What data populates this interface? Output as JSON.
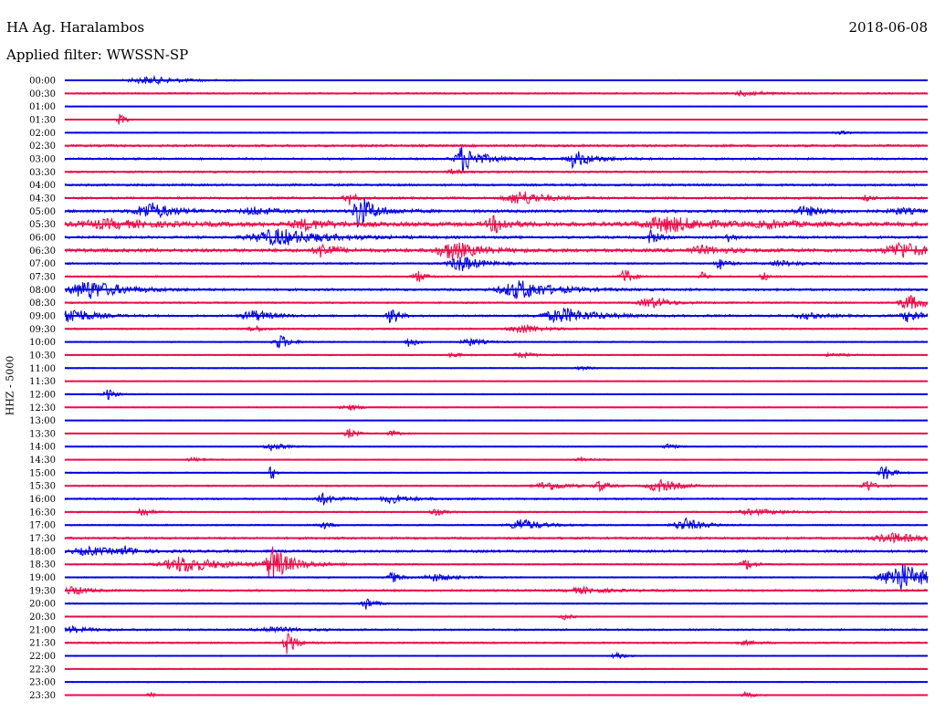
{
  "header": {
    "station": "HA Ag. Haralambos",
    "date": "2018-06-08",
    "filter": "Applied filter: WWSSN-SP",
    "channel": "HHZ - 5000"
  },
  "colors": {
    "blue": "#0000e6",
    "red": "#ee0a48"
  },
  "chart_data": {
    "type": "line",
    "title": "HA Ag. Haralambos",
    "subtitle": "Applied filter: WWSSN-SP",
    "ylabel": "HHZ - 5000",
    "rows": [
      {
        "label": "00:00",
        "color": "blue",
        "noise": 0.6,
        "events": [
          [
            0.1,
            4,
            0.06,
            0.7
          ]
        ]
      },
      {
        "label": "00:30",
        "color": "red",
        "noise": 0.9,
        "events": [
          [
            0.79,
            3,
            0.03,
            0.7
          ]
        ]
      },
      {
        "label": "01:00",
        "color": "blue",
        "noise": 0.4,
        "events": []
      },
      {
        "label": "01:30",
        "color": "red",
        "noise": 0.5,
        "events": [
          [
            0.065,
            9,
            0.005,
            0.4
          ]
        ]
      },
      {
        "label": "02:00",
        "color": "blue",
        "noise": 0.6,
        "events": [
          [
            0.9,
            1.5,
            0.02,
            0.5
          ]
        ]
      },
      {
        "label": "02:30",
        "color": "red",
        "noise": 1.2,
        "events": []
      },
      {
        "label": "03:00",
        "color": "blue",
        "noise": 1.1,
        "events": [
          [
            0.46,
            10,
            0.01,
            0.6
          ],
          [
            0.47,
            7,
            0.04,
            0.6
          ],
          [
            0.59,
            7,
            0.01,
            0.5
          ],
          [
            0.6,
            4,
            0.04,
            0.6
          ]
        ]
      },
      {
        "label": "03:30",
        "color": "red",
        "noise": 1.0,
        "events": [
          [
            0.45,
            3,
            0.01,
            0.5
          ]
        ]
      },
      {
        "label": "04:00",
        "color": "blue",
        "noise": 1.2,
        "events": []
      },
      {
        "label": "04:30",
        "color": "red",
        "noise": 1.2,
        "events": [
          [
            0.33,
            7,
            0.01,
            0.7
          ],
          [
            0.53,
            8,
            0.04,
            0.7
          ],
          [
            0.93,
            4,
            0.005,
            0.5
          ]
        ]
      },
      {
        "label": "05:00",
        "color": "blue",
        "noise": 1.5,
        "events": [
          [
            0.1,
            9,
            0.04,
            0.7
          ],
          [
            0.34,
            18,
            0.006,
            0.6
          ],
          [
            0.35,
            9,
            0.03,
            0.6
          ],
          [
            0.22,
            4,
            0.03,
            0.6
          ],
          [
            0.86,
            5,
            0.03,
            0.6
          ],
          [
            0.97,
            3,
            0.03,
            0.5
          ]
        ]
      },
      {
        "label": "05:30",
        "color": "red",
        "noise": 2.2,
        "events": [
          [
            0.05,
            4,
            0.08,
            0.5
          ],
          [
            0.5,
            9,
            0.02,
            0.6
          ],
          [
            0.7,
            8,
            0.07,
            0.7
          ],
          [
            0.28,
            5,
            0.04,
            0.5
          ],
          [
            0.82,
            3,
            0.04,
            0.5
          ]
        ]
      },
      {
        "label": "06:00",
        "color": "blue",
        "noise": 1.3,
        "events": [
          [
            0.25,
            9,
            0.08,
            0.7
          ],
          [
            0.68,
            8,
            0.01,
            0.6
          ],
          [
            0.77,
            6,
            0.005,
            0.5
          ]
        ]
      },
      {
        "label": "06:30",
        "color": "red",
        "noise": 1.8,
        "events": [
          [
            0.3,
            8,
            0.02,
            0.6
          ],
          [
            0.45,
            10,
            0.04,
            0.6
          ],
          [
            0.97,
            9,
            0.04,
            0.6
          ],
          [
            0.74,
            4,
            0.04,
            0.6
          ]
        ]
      },
      {
        "label": "07:00",
        "color": "blue",
        "noise": 1.0,
        "events": [
          [
            0.46,
            9,
            0.03,
            0.6
          ],
          [
            0.76,
            6,
            0.01,
            0.5
          ],
          [
            0.83,
            3,
            0.03,
            0.5
          ]
        ]
      },
      {
        "label": "07:30",
        "color": "red",
        "noise": 0.9,
        "events": [
          [
            0.41,
            6,
            0.01,
            0.5
          ],
          [
            0.65,
            9,
            0.01,
            0.6
          ],
          [
            0.74,
            5,
            0.005,
            0.5
          ],
          [
            0.81,
            5,
            0.005,
            0.5
          ]
        ]
      },
      {
        "label": "08:00",
        "color": "blue",
        "noise": 1.2,
        "events": [
          [
            0.03,
            10,
            0.06,
            0.7
          ],
          [
            0.53,
            10,
            0.06,
            0.7
          ]
        ]
      },
      {
        "label": "08:30",
        "color": "red",
        "noise": 0.9,
        "events": [
          [
            0.68,
            6,
            0.03,
            0.6
          ],
          [
            0.98,
            8,
            0.03,
            0.6
          ]
        ]
      },
      {
        "label": "09:00",
        "color": "blue",
        "noise": 1.1,
        "events": [
          [
            0.01,
            9,
            0.03,
            0.6
          ],
          [
            0.22,
            6,
            0.03,
            0.6
          ],
          [
            0.38,
            10,
            0.01,
            0.6
          ],
          [
            0.58,
            8,
            0.06,
            0.7
          ],
          [
            0.86,
            3,
            0.03,
            0.5
          ],
          [
            0.98,
            7,
            0.02,
            0.6
          ]
        ]
      },
      {
        "label": "09:30",
        "color": "red",
        "noise": 0.9,
        "events": [
          [
            0.22,
            4,
            0.01,
            0.5
          ],
          [
            0.53,
            5,
            0.03,
            0.5
          ]
        ]
      },
      {
        "label": "10:00",
        "color": "blue",
        "noise": 0.7,
        "events": [
          [
            0.25,
            8,
            0.015,
            0.6
          ],
          [
            0.4,
            6,
            0.01,
            0.5
          ],
          [
            0.47,
            4,
            0.02,
            0.5
          ]
        ]
      },
      {
        "label": "10:30",
        "color": "red",
        "noise": 0.7,
        "events": [
          [
            0.45,
            3,
            0.01,
            0.5
          ],
          [
            0.53,
            3,
            0.02,
            0.5
          ],
          [
            0.89,
            2,
            0.02,
            0.5
          ]
        ]
      },
      {
        "label": "11:00",
        "color": "blue",
        "noise": 0.6,
        "events": [
          [
            0.6,
            1.5,
            0.02,
            0.5
          ]
        ]
      },
      {
        "label": "11:30",
        "color": "red",
        "noise": 0.6,
        "events": []
      },
      {
        "label": "12:00",
        "color": "blue",
        "noise": 0.6,
        "events": [
          [
            0.05,
            6,
            0.01,
            0.5
          ]
        ]
      },
      {
        "label": "12:30",
        "color": "red",
        "noise": 0.6,
        "events": [
          [
            0.33,
            3,
            0.02,
            0.5
          ]
        ]
      },
      {
        "label": "13:00",
        "color": "blue",
        "noise": 0.5,
        "events": []
      },
      {
        "label": "13:30",
        "color": "red",
        "noise": 0.6,
        "events": [
          [
            0.33,
            5,
            0.01,
            0.5
          ],
          [
            0.38,
            3,
            0.01,
            0.5
          ]
        ]
      },
      {
        "label": "14:00",
        "color": "blue",
        "noise": 0.6,
        "events": [
          [
            0.24,
            4,
            0.02,
            0.5
          ],
          [
            0.7,
            3,
            0.01,
            0.5
          ]
        ]
      },
      {
        "label": "14:30",
        "color": "red",
        "noise": 0.6,
        "events": [
          [
            0.15,
            2,
            0.02,
            0.5
          ],
          [
            0.6,
            2,
            0.02,
            0.5
          ]
        ]
      },
      {
        "label": "15:00",
        "color": "blue",
        "noise": 0.7,
        "events": [
          [
            0.24,
            9,
            0.005,
            0.5
          ],
          [
            0.95,
            10,
            0.01,
            0.5
          ]
        ]
      },
      {
        "label": "15:30",
        "color": "red",
        "noise": 0.8,
        "events": [
          [
            0.56,
            5,
            0.03,
            0.5
          ],
          [
            0.62,
            6,
            0.01,
            0.5
          ],
          [
            0.69,
            7,
            0.03,
            0.6
          ],
          [
            0.93,
            7,
            0.01,
            0.5
          ]
        ]
      },
      {
        "label": "16:00",
        "color": "blue",
        "noise": 1.0,
        "events": [
          [
            0.3,
            6,
            0.02,
            0.5
          ],
          [
            0.38,
            4,
            0.03,
            0.5
          ]
        ]
      },
      {
        "label": "16:30",
        "color": "red",
        "noise": 0.8,
        "events": [
          [
            0.09,
            6,
            0.01,
            0.5
          ],
          [
            0.43,
            4,
            0.01,
            0.5
          ],
          [
            0.8,
            3,
            0.05,
            0.5
          ]
        ]
      },
      {
        "label": "17:00",
        "color": "blue",
        "noise": 0.8,
        "events": [
          [
            0.3,
            4,
            0.01,
            0.5
          ],
          [
            0.53,
            7,
            0.03,
            0.6
          ],
          [
            0.72,
            7,
            0.03,
            0.6
          ]
        ]
      },
      {
        "label": "17:30",
        "color": "red",
        "noise": 1.2,
        "events": [
          [
            0.96,
            5,
            0.05,
            0.5
          ]
        ]
      },
      {
        "label": "18:00",
        "color": "blue",
        "noise": 1.3,
        "events": [
          [
            0.03,
            4,
            0.05,
            0.5
          ],
          [
            0.07,
            4,
            0.01,
            0.5
          ]
        ]
      },
      {
        "label": "18:30",
        "color": "red",
        "noise": 0.9,
        "events": [
          [
            0.14,
            9,
            0.06,
            0.6
          ],
          [
            0.24,
            14,
            0.01,
            0.6
          ],
          [
            0.25,
            9,
            0.04,
            0.6
          ],
          [
            0.79,
            6,
            0.01,
            0.5
          ]
        ]
      },
      {
        "label": "19:00",
        "color": "blue",
        "noise": 0.8,
        "events": [
          [
            0.38,
            6,
            0.01,
            0.5
          ],
          [
            0.43,
            4,
            0.03,
            0.5
          ],
          [
            0.97,
            16,
            0.05,
            0.8
          ]
        ]
      },
      {
        "label": "19:30",
        "color": "red",
        "noise": 1.1,
        "events": [
          [
            0.01,
            5,
            0.02,
            0.5
          ],
          [
            0.6,
            3,
            0.04,
            0.5
          ]
        ]
      },
      {
        "label": "20:00",
        "color": "blue",
        "noise": 0.7,
        "events": [
          [
            0.35,
            7,
            0.01,
            0.5
          ]
        ]
      },
      {
        "label": "20:30",
        "color": "red",
        "noise": 0.7,
        "events": [
          [
            0.58,
            3,
            0.01,
            0.5
          ]
        ]
      },
      {
        "label": "21:00",
        "color": "blue",
        "noise": 1.0,
        "events": [
          [
            0.01,
            3,
            0.03,
            0.5
          ],
          [
            0.24,
            3,
            0.04,
            0.5
          ]
        ]
      },
      {
        "label": "21:30",
        "color": "red",
        "noise": 0.9,
        "events": [
          [
            0.26,
            16,
            0.01,
            0.7
          ],
          [
            0.79,
            2,
            0.02,
            0.5
          ]
        ]
      },
      {
        "label": "22:00",
        "color": "blue",
        "noise": 0.6,
        "events": [
          [
            0.64,
            4,
            0.01,
            0.5
          ]
        ]
      },
      {
        "label": "22:30",
        "color": "red",
        "noise": 0.6,
        "events": []
      },
      {
        "label": "23:00",
        "color": "blue",
        "noise": 0.6,
        "events": []
      },
      {
        "label": "23:30",
        "color": "red",
        "noise": 0.6,
        "events": [
          [
            0.1,
            2,
            0.01,
            0.5
          ],
          [
            0.79,
            3,
            0.01,
            0.5
          ]
        ]
      }
    ]
  }
}
